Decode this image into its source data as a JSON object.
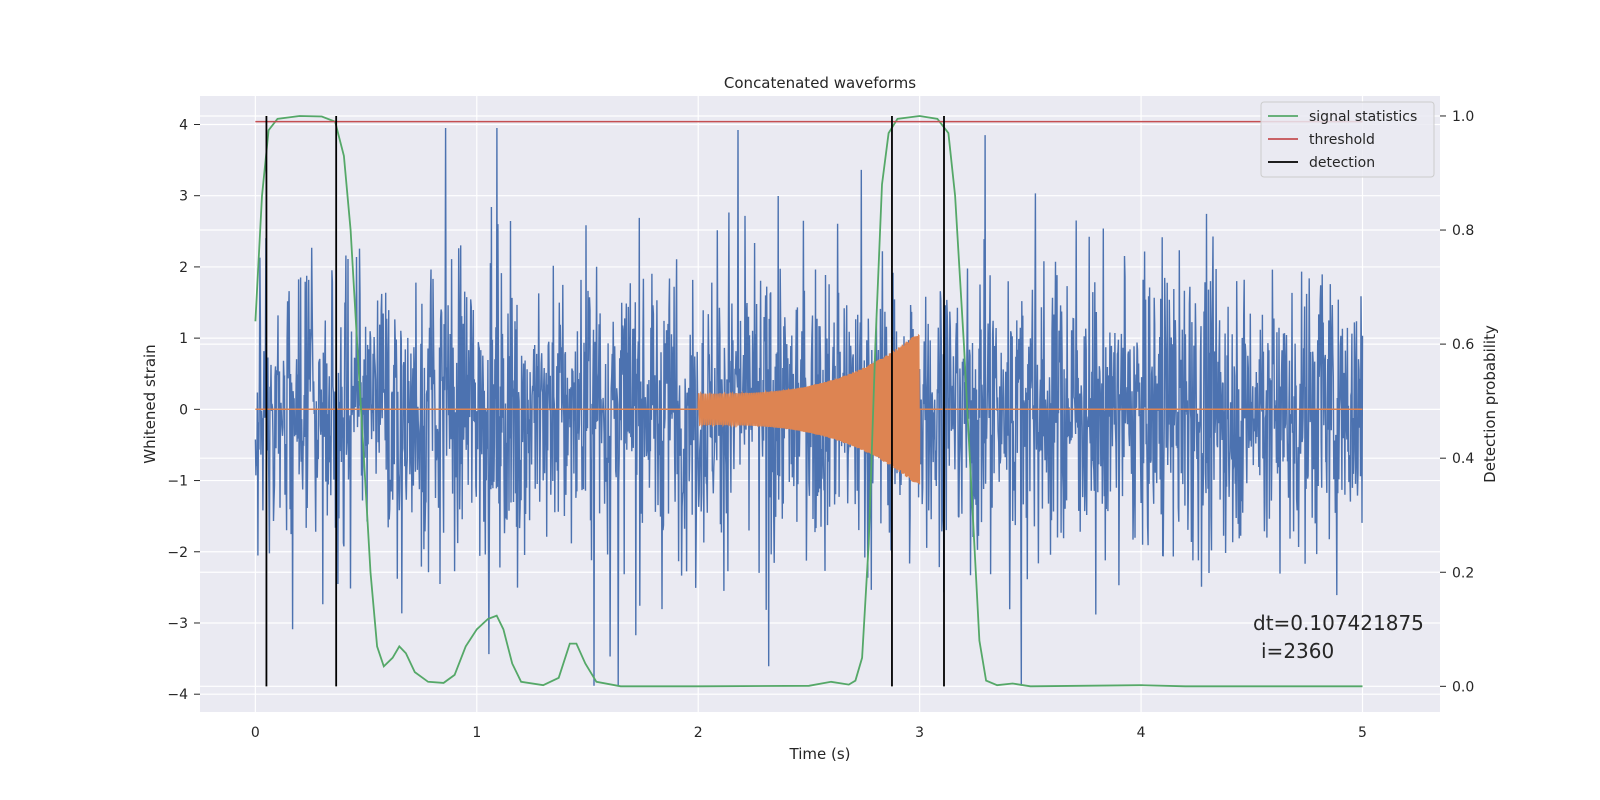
{
  "chart_data": {
    "type": "line",
    "title": "Concatenated waveforms",
    "xlabel": "Time (s)",
    "ylabel_left": "Whitened strain",
    "ylabel_right": "Detection probability",
    "xlim": [
      -0.25,
      5.35
    ],
    "ylim_left": [
      -4.25,
      4.4
    ],
    "ylim_right": [
      -0.045,
      1.035
    ],
    "x_ticks": [
      0,
      1,
      2,
      3,
      4,
      5
    ],
    "x_tick_labels": [
      "0",
      "1",
      "2",
      "3",
      "4",
      "5"
    ],
    "y_left_ticks": [
      -4,
      -3,
      -2,
      -1,
      0,
      1,
      2,
      3,
      4
    ],
    "y_left_tick_labels": [
      "−4",
      "−3",
      "−2",
      "−1",
      "0",
      "1",
      "2",
      "3",
      "4"
    ],
    "y_right_ticks": [
      0.0,
      0.2,
      0.4,
      0.6,
      0.8,
      1.0
    ],
    "y_right_tick_labels": [
      "0.0",
      "0.2",
      "0.4",
      "0.6",
      "0.8",
      "1.0"
    ],
    "grid": true,
    "legend_position": "top-right",
    "legend": [
      {
        "label": "signal statistics",
        "color": "#55a868"
      },
      {
        "label": "threshold",
        "color": "#c44e52"
      },
      {
        "label": "detection",
        "color": "#000000"
      }
    ],
    "series": [
      {
        "name": "whitened strain",
        "axis": "left",
        "color": "#4c72b0",
        "note": "dense whitened noise over 0-5 s, peaks up to about 4.0 and dips to about -3.9",
        "x_range": [
          0,
          5
        ],
        "typical_abs": 1.0,
        "max_abs": 4.0
      },
      {
        "name": "injected waveform",
        "axis": "left",
        "color": "#dd8452",
        "note": "chirp signal between 2.0 s and 3.0 s, zero elsewhere",
        "x_range": [
          2.0,
          3.0
        ],
        "amplitude_start": 0.22,
        "amplitude_end": 1.1
      },
      {
        "name": "signal statistics",
        "axis": "right",
        "color": "#55a868",
        "points": [
          [
            0.0,
            0.64
          ],
          [
            0.03,
            0.86
          ],
          [
            0.06,
            0.975
          ],
          [
            0.1,
            0.995
          ],
          [
            0.2,
            1.0
          ],
          [
            0.3,
            0.999
          ],
          [
            0.36,
            0.99
          ],
          [
            0.4,
            0.93
          ],
          [
            0.43,
            0.8
          ],
          [
            0.46,
            0.6
          ],
          [
            0.49,
            0.4
          ],
          [
            0.52,
            0.2
          ],
          [
            0.55,
            0.07
          ],
          [
            0.58,
            0.035
          ],
          [
            0.62,
            0.05
          ],
          [
            0.65,
            0.07
          ],
          [
            0.68,
            0.058
          ],
          [
            0.72,
            0.025
          ],
          [
            0.78,
            0.008
          ],
          [
            0.85,
            0.006
          ],
          [
            0.9,
            0.02
          ],
          [
            0.95,
            0.07
          ],
          [
            1.0,
            0.1
          ],
          [
            1.05,
            0.118
          ],
          [
            1.09,
            0.124
          ],
          [
            1.12,
            0.1
          ],
          [
            1.16,
            0.04
          ],
          [
            1.2,
            0.008
          ],
          [
            1.3,
            0.002
          ],
          [
            1.37,
            0.015
          ],
          [
            1.42,
            0.075
          ],
          [
            1.45,
            0.075
          ],
          [
            1.49,
            0.04
          ],
          [
            1.54,
            0.008
          ],
          [
            1.65,
            0.0
          ],
          [
            2.0,
            0.0
          ],
          [
            2.5,
            0.001
          ],
          [
            2.6,
            0.008
          ],
          [
            2.68,
            0.003
          ],
          [
            2.71,
            0.01
          ],
          [
            2.74,
            0.05
          ],
          [
            2.77,
            0.25
          ],
          [
            2.8,
            0.6
          ],
          [
            2.83,
            0.88
          ],
          [
            2.86,
            0.97
          ],
          [
            2.9,
            0.995
          ],
          [
            3.0,
            1.0
          ],
          [
            3.08,
            0.995
          ],
          [
            3.13,
            0.97
          ],
          [
            3.16,
            0.86
          ],
          [
            3.2,
            0.6
          ],
          [
            3.24,
            0.3
          ],
          [
            3.27,
            0.08
          ],
          [
            3.3,
            0.01
          ],
          [
            3.35,
            0.002
          ],
          [
            3.42,
            0.005
          ],
          [
            3.5,
            0.0
          ],
          [
            4.0,
            0.002
          ],
          [
            4.2,
            0.0
          ],
          [
            5.0,
            0.0
          ]
        ]
      },
      {
        "name": "threshold",
        "axis": "right",
        "color": "#c44e52",
        "x": [
          0.0,
          5.0
        ],
        "y": [
          0.99,
          0.99
        ]
      }
    ],
    "detections": {
      "axis": "right",
      "color": "#000000",
      "x": [
        0.05,
        0.365,
        2.875,
        3.11
      ],
      "ymin": 0.0,
      "ymax": 1.0
    },
    "annotation": {
      "line1": "dt=0.107421875",
      "line2": "i=2360"
    }
  }
}
